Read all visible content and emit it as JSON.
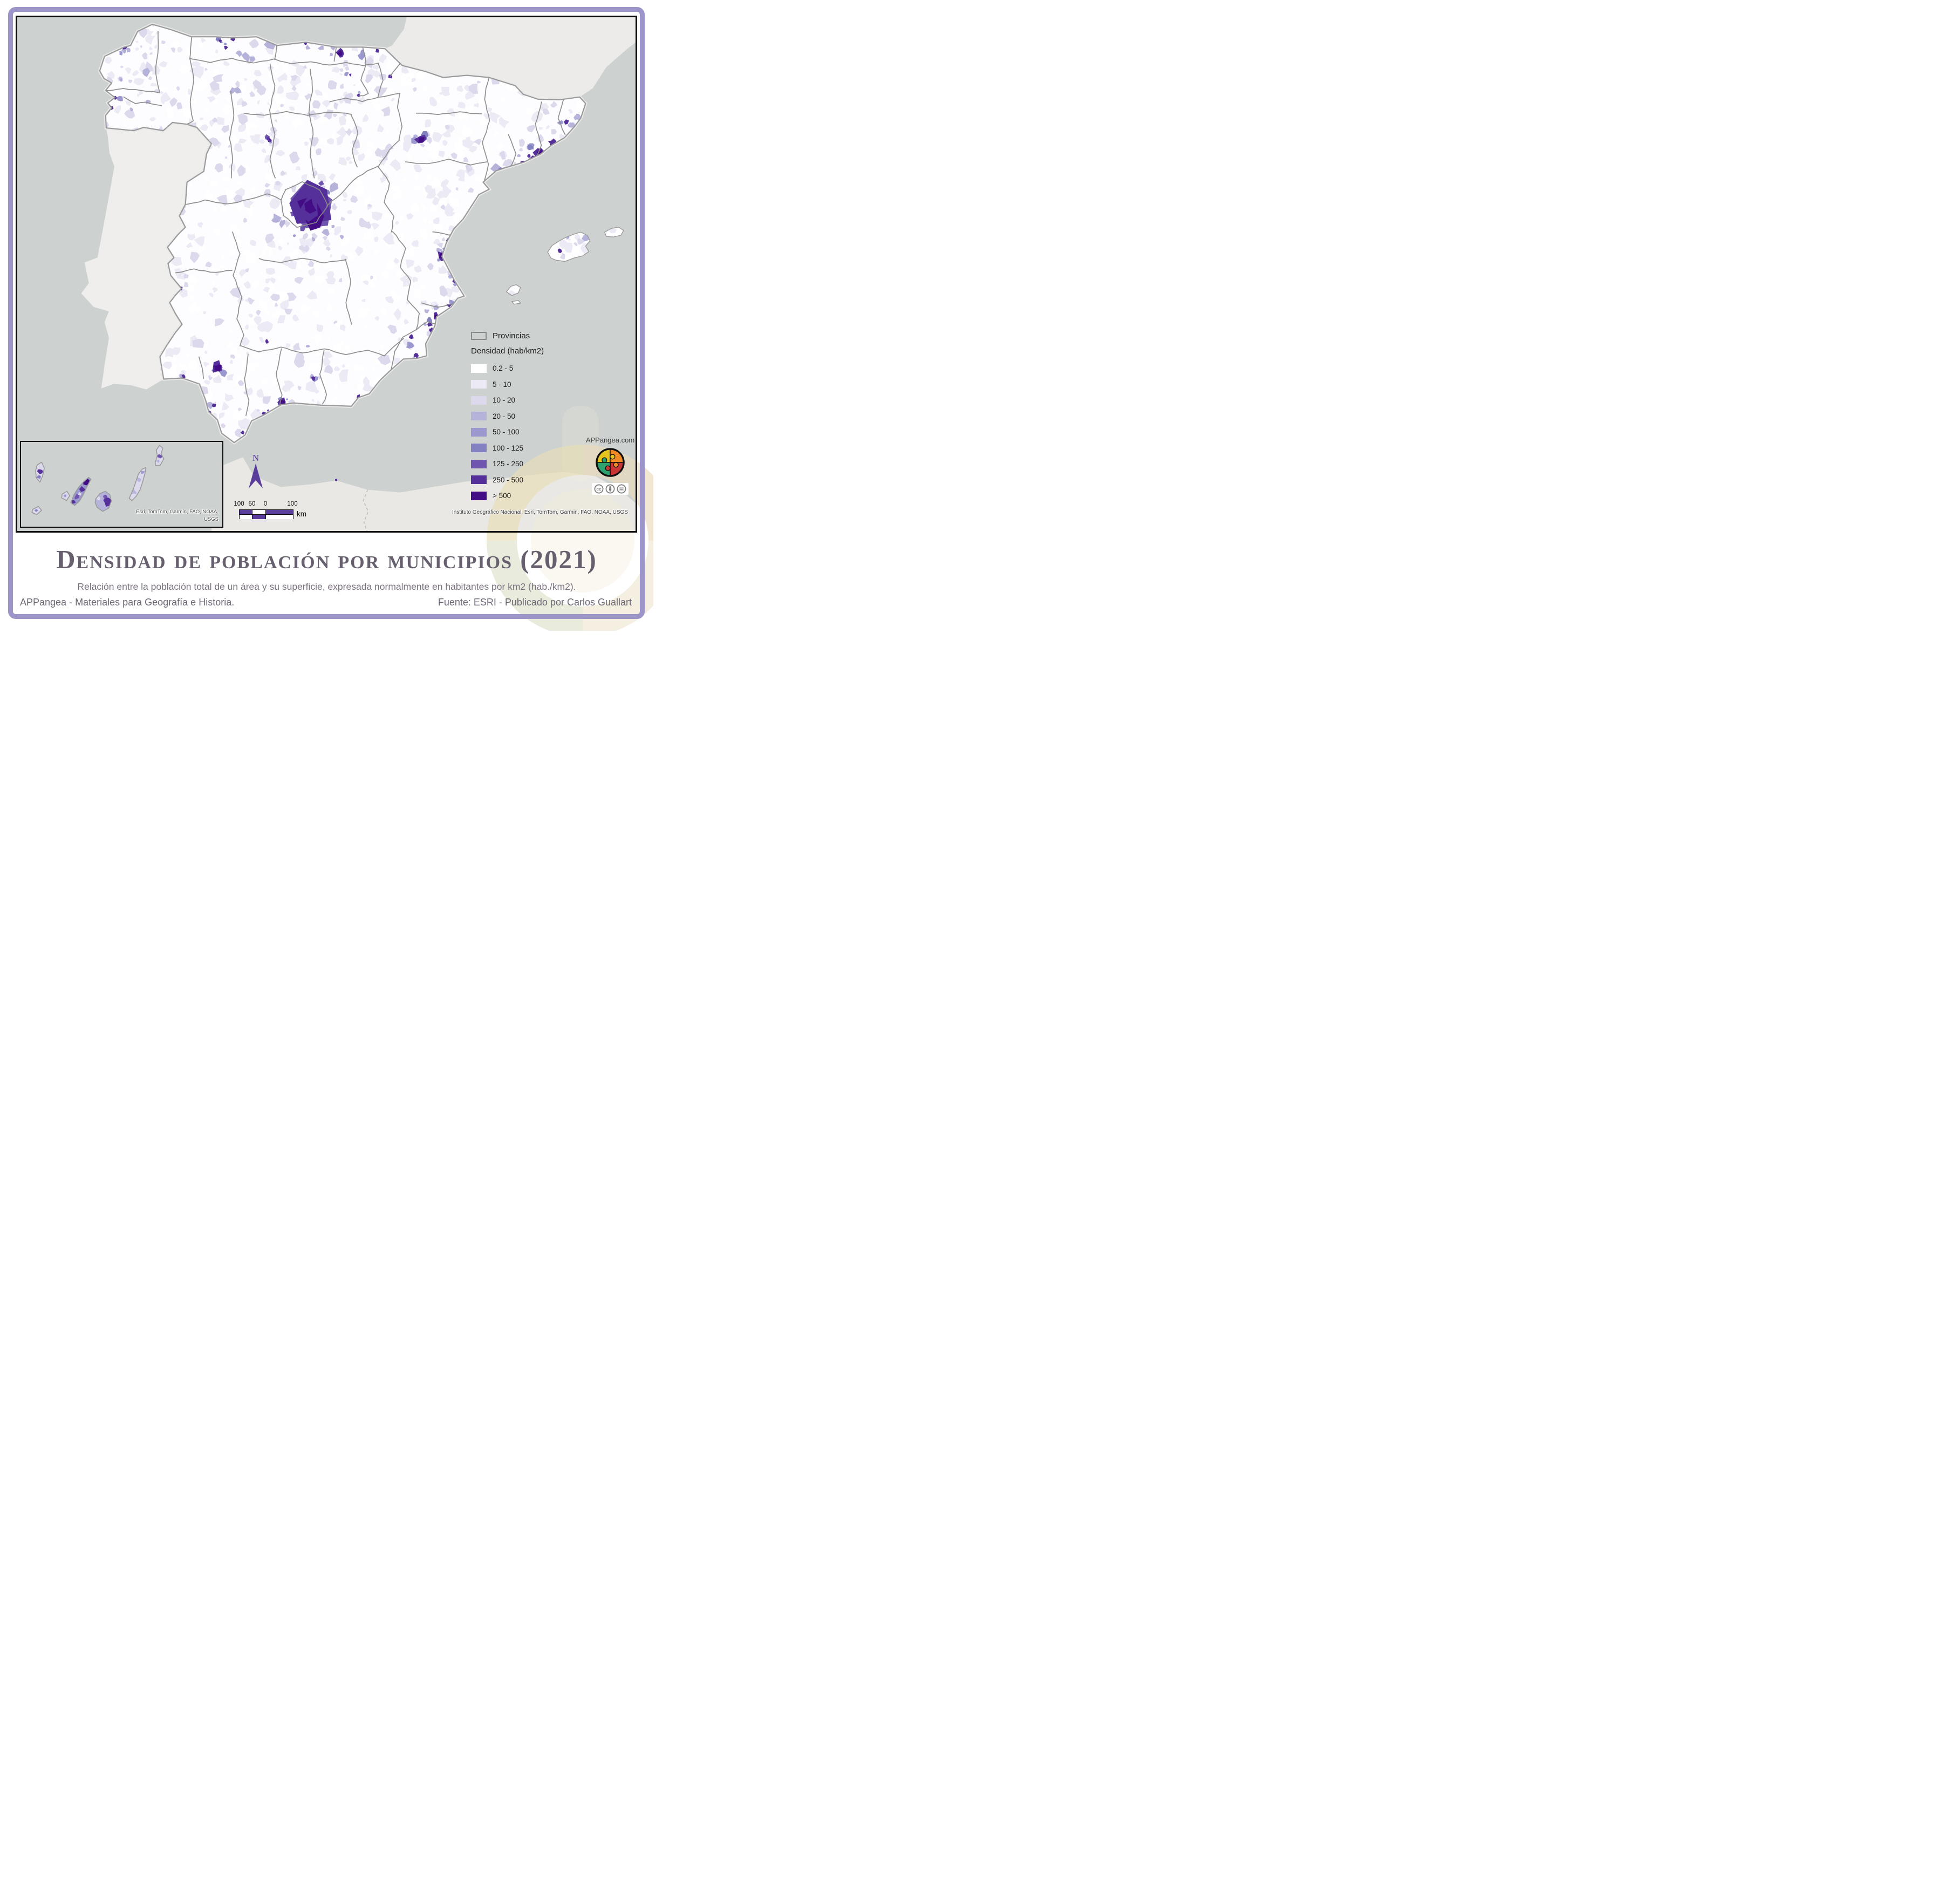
{
  "title_block": {
    "title": "Densidad de población por municipios (2021)",
    "subtitle": "Relación entre la población total de un área y su superficie, expresada normalmente en habitantes por km2 (hab./km2)."
  },
  "footer": {
    "left": "APPangea - Materiales para Geografía e Historia.",
    "right": "Fuente: ESRI - Publicado por Carlos Guallart"
  },
  "legend": {
    "provinces_label": "Provincias",
    "density_title": "Densidad (hab/km2)",
    "classes": [
      {
        "label": "0.2 - 5",
        "color": "#ffffff"
      },
      {
        "label": "5 - 10",
        "color": "#eceaf4"
      },
      {
        "label": "10 - 20",
        "color": "#dcd9ec"
      },
      {
        "label": "20 - 50",
        "color": "#b6b3da"
      },
      {
        "label": "50 - 100",
        "color": "#9b98cf"
      },
      {
        "label": "100 - 125",
        "color": "#8481c1"
      },
      {
        "label": "125 - 250",
        "color": "#6f55ad"
      },
      {
        "label": "250 - 500",
        "color": "#55309b"
      },
      {
        "label": "> 500",
        "color": "#430d86"
      }
    ]
  },
  "map": {
    "attribution": "Instituto Geográfico Nacional, Esri, TomTom, Garmin, FAO, NOAA, USGS",
    "inset_attribution": [
      "Esri, TomTom, Garmin, FAO, NOAA,",
      "USGS"
    ],
    "north_label": "N",
    "scalebar": {
      "labels": [
        "100",
        "50",
        "0",
        "100"
      ],
      "unit": "km"
    }
  },
  "branding": {
    "site": "APPangea.com",
    "license_icons": [
      "cc",
      "by",
      "nd"
    ]
  },
  "colors": {
    "frame": "#9b95c9",
    "sea": "#cdd2d1",
    "portugal_land": "#efeeec",
    "france_land": "#ecebe9",
    "africa_land": "#e9e8e4",
    "spain_base": "#fdfcfe",
    "coast_halo": "#e8e9e8",
    "coast_border": "#9a9a9a",
    "province_border": "#8a8a8a",
    "north_arrow": "#5a3d9b",
    "scalebar_fill": "#5a3d9b",
    "title_text": "#675f6d",
    "watermark": "#e6dcbb",
    "logo": {
      "yellow": "#e6c41e",
      "orange": "#f08a24",
      "red": "#c93434",
      "green": "#2ca36f"
    }
  }
}
